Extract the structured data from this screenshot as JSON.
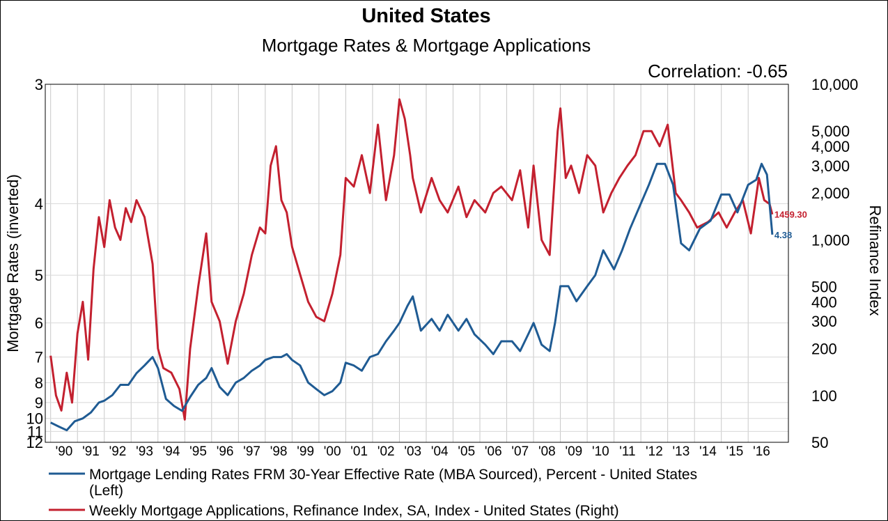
{
  "chart_data": {
    "type": "line",
    "title": "United States",
    "subtitle": "Mortgage Rates & Mortgage Applications",
    "annotation": "Correlation: -0.65",
    "grid": true,
    "legend_placement": "bottom",
    "x_ticks": [
      "'90",
      "'91",
      "'92",
      "'93",
      "'94",
      "'95",
      "'96",
      "'97",
      "'98",
      "'99",
      "'00",
      "'01",
      "'02",
      "'03",
      "'04",
      "'05",
      "'06",
      "'07",
      "'08",
      "'09",
      "'10",
      "'11",
      "'12",
      "'13",
      "'14",
      "'15",
      "'16"
    ],
    "xlim": [
      1989.8,
      2017.5
    ],
    "y_left": {
      "label": "Mortgage Rates (inverted)",
      "inverted": true,
      "scale": "reciprocal",
      "range": [
        3,
        12
      ],
      "ticks": [
        3,
        4,
        5,
        6,
        7,
        8,
        9,
        10,
        11,
        12
      ]
    },
    "y_right": {
      "label": "Refinance Index",
      "scale": "log",
      "range": [
        50,
        10000
      ],
      "ticks": [
        50,
        100,
        200,
        300,
        400,
        500,
        1000,
        2000,
        3000,
        4000,
        5000,
        10000
      ],
      "tick_labels": [
        "50",
        "100",
        "200",
        "300",
        "400",
        "500",
        "1,000",
        "2,000",
        "3,000",
        "4,000",
        "5,000",
        "10,000"
      ]
    },
    "series": [
      {
        "name": "Mortgage Lending Rates FRM 30-Year Effective Rate (MBA Sourced), Percent - United States (Left)",
        "axis": "left",
        "color": "#1f5b93",
        "last_label": "4.38",
        "x": [
          1990.0,
          1990.3,
          1990.6,
          1990.9,
          1991.2,
          1991.5,
          1991.8,
          1992.0,
          1992.3,
          1992.6,
          1992.9,
          1993.2,
          1993.5,
          1993.8,
          1994.0,
          1994.3,
          1994.6,
          1994.9,
          1995.2,
          1995.5,
          1995.8,
          1996.0,
          1996.3,
          1996.6,
          1996.9,
          1997.2,
          1997.5,
          1997.8,
          1998.0,
          1998.3,
          1998.6,
          1998.8,
          1999.0,
          1999.3,
          1999.6,
          1999.9,
          2000.2,
          2000.5,
          2000.8,
          2001.0,
          2001.3,
          2001.6,
          2001.9,
          2002.2,
          2002.5,
          2002.8,
          2003.0,
          2003.3,
          2003.5,
          2003.8,
          2004.2,
          2004.5,
          2004.8,
          2005.2,
          2005.5,
          2005.8,
          2006.2,
          2006.5,
          2006.8,
          2007.2,
          2007.5,
          2007.8,
          2008.0,
          2008.3,
          2008.6,
          2008.8,
          2009.0,
          2009.3,
          2009.6,
          2010.0,
          2010.3,
          2010.6,
          2011.0,
          2011.3,
          2011.6,
          2012.0,
          2012.3,
          2012.6,
          2012.9,
          2013.2,
          2013.5,
          2013.8,
          2014.2,
          2014.6,
          2015.0,
          2015.3,
          2015.6,
          2016.0,
          2016.3,
          2016.5,
          2016.7,
          2016.9
        ],
        "values": [
          10.3,
          10.6,
          10.9,
          10.2,
          10.0,
          9.6,
          9.0,
          8.9,
          8.6,
          8.1,
          8.1,
          7.6,
          7.3,
          7.0,
          7.4,
          8.8,
          9.2,
          9.5,
          8.7,
          8.1,
          7.8,
          7.4,
          8.2,
          8.6,
          8.0,
          7.8,
          7.5,
          7.3,
          7.1,
          7.0,
          7.0,
          6.9,
          7.1,
          7.3,
          8.0,
          8.3,
          8.6,
          8.4,
          8.0,
          7.2,
          7.3,
          7.5,
          7.0,
          6.9,
          6.5,
          6.2,
          6.0,
          5.6,
          5.4,
          6.2,
          5.9,
          6.2,
          5.8,
          6.2,
          5.9,
          6.3,
          6.6,
          6.9,
          6.5,
          6.5,
          6.8,
          6.3,
          6.0,
          6.6,
          6.8,
          6.0,
          5.2,
          5.2,
          5.5,
          5.2,
          5.0,
          4.6,
          4.9,
          4.6,
          4.3,
          4.0,
          3.8,
          3.6,
          3.6,
          3.8,
          4.5,
          4.6,
          4.3,
          4.2,
          3.9,
          3.9,
          4.1,
          3.8,
          3.75,
          3.6,
          3.7,
          4.38
        ]
      },
      {
        "name": "Weekly Mortgage Applications, Refinance Index, SA, Index - United States  (Right)",
        "axis": "right",
        "color": "#c3202f",
        "last_label": "1459.30",
        "x": [
          1990.0,
          1990.2,
          1990.4,
          1990.6,
          1990.8,
          1991.0,
          1991.2,
          1991.4,
          1991.6,
          1991.8,
          1992.0,
          1992.2,
          1992.4,
          1992.6,
          1992.8,
          1993.0,
          1993.2,
          1993.5,
          1993.8,
          1994.0,
          1994.2,
          1994.5,
          1994.8,
          1995.0,
          1995.2,
          1995.5,
          1995.8,
          1996.0,
          1996.3,
          1996.6,
          1996.9,
          1997.2,
          1997.5,
          1997.8,
          1998.0,
          1998.2,
          1998.4,
          1998.6,
          1998.8,
          1999.0,
          1999.3,
          1999.6,
          1999.9,
          2000.2,
          2000.5,
          2000.8,
          2001.0,
          2001.3,
          2001.6,
          2001.9,
          2002.2,
          2002.5,
          2002.8,
          2003.0,
          2003.2,
          2003.4,
          2003.5,
          2003.8,
          2004.2,
          2004.5,
          2004.8,
          2005.2,
          2005.5,
          2005.8,
          2006.2,
          2006.5,
          2006.8,
          2007.2,
          2007.5,
          2007.8,
          2008.0,
          2008.3,
          2008.6,
          2008.9,
          2009.0,
          2009.2,
          2009.4,
          2009.7,
          2010.0,
          2010.3,
          2010.6,
          2010.9,
          2011.2,
          2011.5,
          2011.8,
          2012.1,
          2012.4,
          2012.7,
          2013.0,
          2013.3,
          2013.5,
          2013.8,
          2014.1,
          2014.5,
          2014.9,
          2015.2,
          2015.5,
          2015.8,
          2016.1,
          2016.4,
          2016.6,
          2016.8,
          2016.9
        ],
        "values": [
          180,
          100,
          80,
          140,
          90,
          250,
          400,
          170,
          650,
          1400,
          900,
          1800,
          1200,
          1000,
          1600,
          1300,
          1800,
          1400,
          700,
          200,
          150,
          140,
          110,
          70,
          200,
          500,
          1100,
          400,
          300,
          160,
          300,
          450,
          800,
          1200,
          1100,
          3000,
          4000,
          1800,
          1500,
          900,
          600,
          400,
          320,
          300,
          450,
          800,
          2500,
          2200,
          3500,
          2000,
          5500,
          1800,
          3500,
          8000,
          6000,
          3500,
          2500,
          1500,
          2500,
          1800,
          1500,
          2200,
          1400,
          1800,
          1500,
          2000,
          2200,
          1800,
          2800,
          1200,
          3000,
          1000,
          800,
          5000,
          7000,
          2500,
          3000,
          2000,
          3500,
          3000,
          1500,
          2000,
          2500,
          3000,
          3500,
          5000,
          5000,
          4000,
          5500,
          2000,
          1800,
          1500,
          1200,
          1300,
          1500,
          1200,
          1500,
          1800,
          1100,
          2500,
          1800,
          1700,
          1459.3
        ]
      }
    ]
  }
}
